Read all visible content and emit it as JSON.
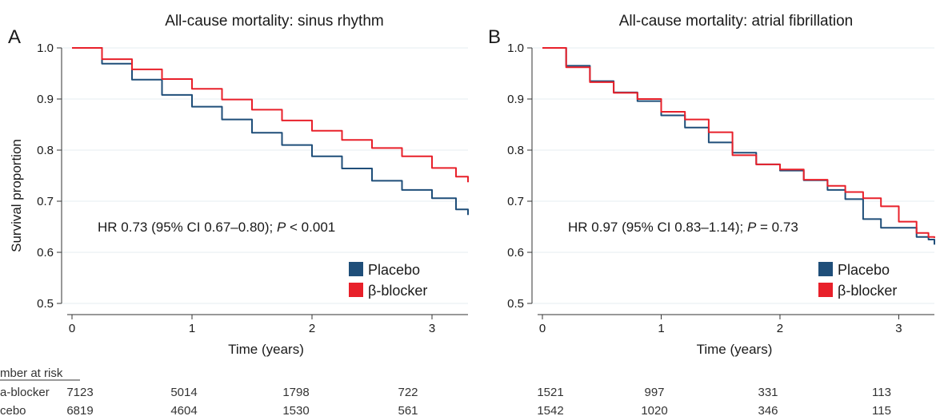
{
  "chart_data": [
    {
      "type": "line",
      "panel_label": "A",
      "title": "All-cause mortality: sinus rhythm",
      "xlabel": "Time (years)",
      "ylabel": "Survival proportion",
      "xlim": [
        0,
        3.3
      ],
      "ylim": [
        0.5,
        1.0
      ],
      "x_ticks": [
        "0",
        "1",
        "2",
        "3"
      ],
      "y_ticks": [
        "0.5",
        "0.6",
        "0.7",
        "0.8",
        "0.9",
        "1.0"
      ],
      "grid": "horizontal",
      "legend_position": "bottom-right",
      "annotation_prefix": "HR 0.73 (95% CI 0.67–0.80); ",
      "annotation_p": "P",
      "annotation_suffix": " < 0.001",
      "series": [
        {
          "name": "Placebo",
          "color": "#1f4e79",
          "x": [
            0,
            0.25,
            0.5,
            0.75,
            1.0,
            1.25,
            1.5,
            1.75,
            2.0,
            2.25,
            2.5,
            2.75,
            3.0,
            3.2,
            3.3
          ],
          "y": [
            1.0,
            0.969,
            0.938,
            0.908,
            0.885,
            0.86,
            0.834,
            0.81,
            0.788,
            0.764,
            0.74,
            0.722,
            0.706,
            0.684,
            0.673
          ]
        },
        {
          "name": "β-blocker",
          "color": "#e8202a",
          "x": [
            0,
            0.25,
            0.5,
            0.75,
            1.0,
            1.25,
            1.5,
            1.75,
            2.0,
            2.25,
            2.5,
            2.75,
            3.0,
            3.2,
            3.3
          ],
          "y": [
            1.0,
            0.978,
            0.958,
            0.939,
            0.92,
            0.899,
            0.879,
            0.858,
            0.838,
            0.82,
            0.804,
            0.788,
            0.765,
            0.748,
            0.737
          ]
        }
      ]
    },
    {
      "type": "line",
      "panel_label": "B",
      "title": "All-cause mortality: atrial fibrillation",
      "xlabel": "Time (years)",
      "ylabel": "",
      "xlim": [
        0,
        3.3
      ],
      "ylim": [
        0.5,
        1.0
      ],
      "x_ticks": [
        "0",
        "1",
        "2",
        "3"
      ],
      "y_ticks": [
        "0.5",
        "0.6",
        "0.7",
        "0.8",
        "0.9",
        "1.0"
      ],
      "grid": "horizontal",
      "legend_position": "bottom-right",
      "annotation_prefix": "HR 0.97 (95% CI 0.83–1.14); ",
      "annotation_p": "P",
      "annotation_suffix": " = 0.73",
      "series": [
        {
          "name": "Placebo",
          "color": "#1f4e79",
          "x": [
            0,
            0.2,
            0.4,
            0.6,
            0.8,
            1.0,
            1.2,
            1.4,
            1.6,
            1.8,
            2.0,
            2.2,
            2.4,
            2.55,
            2.7,
            2.85,
            3.0,
            3.15,
            3.25,
            3.3
          ],
          "y": [
            1.0,
            0.965,
            0.935,
            0.913,
            0.896,
            0.868,
            0.844,
            0.815,
            0.795,
            0.772,
            0.76,
            0.741,
            0.722,
            0.704,
            0.665,
            0.648,
            0.648,
            0.63,
            0.625,
            0.615
          ]
        },
        {
          "name": "β-blocker",
          "color": "#e8202a",
          "x": [
            0,
            0.2,
            0.4,
            0.6,
            0.8,
            1.0,
            1.2,
            1.4,
            1.6,
            1.8,
            2.0,
            2.2,
            2.4,
            2.55,
            2.7,
            2.85,
            3.0,
            3.15,
            3.25,
            3.3
          ],
          "y": [
            1.0,
            0.962,
            0.933,
            0.912,
            0.9,
            0.875,
            0.86,
            0.835,
            0.79,
            0.772,
            0.762,
            0.742,
            0.73,
            0.718,
            0.706,
            0.69,
            0.66,
            0.638,
            0.63,
            0.628
          ]
        }
      ]
    }
  ],
  "risk_table": {
    "heading": "mber at risk",
    "rows": [
      {
        "label": "a-blocker",
        "left": [
          "7123",
          "5014",
          "1798",
          "722"
        ],
        "right": [
          "1521",
          "997",
          "331",
          "113"
        ]
      },
      {
        "label": "cebo",
        "left": [
          "6819",
          "4604",
          "1530",
          "561"
        ],
        "right": [
          "1542",
          "1020",
          "346",
          "115"
        ]
      }
    ]
  }
}
